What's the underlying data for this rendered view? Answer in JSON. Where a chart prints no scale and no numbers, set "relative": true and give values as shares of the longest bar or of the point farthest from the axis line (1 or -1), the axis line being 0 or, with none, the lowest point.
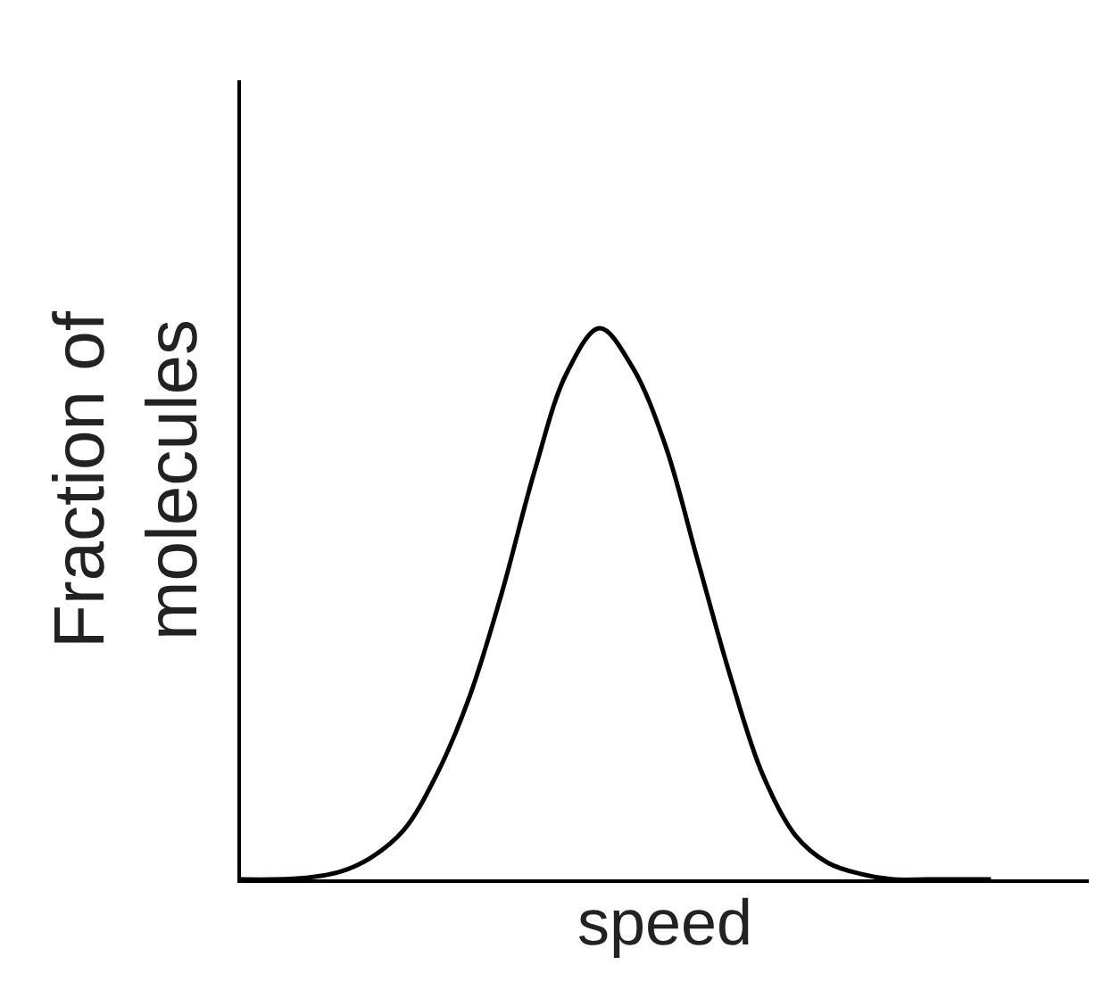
{
  "chart_data": {
    "type": "line",
    "relative": true,
    "xlabel": "speed",
    "ylabel": "Fraction of molecules",
    "marker": "none",
    "line_style": "solid",
    "categories": [
      null,
      null,
      null,
      null,
      null,
      null,
      null,
      null,
      null,
      null,
      null,
      null,
      null,
      null,
      null,
      null,
      null,
      null,
      null,
      null,
      null,
      null,
      null,
      null
    ],
    "series": [
      {
        "color": "#000000",
        "values": [
          0,
          0,
          0.003,
          0.013,
          0.04,
          0.09,
          0.19,
          0.33,
          0.52,
          0.74,
          0.92,
          1.0,
          0.93,
          0.79,
          0.58,
          0.37,
          0.19,
          0.08,
          0.03,
          0.01,
          0,
          0,
          0,
          0
        ]
      }
    ]
  }
}
